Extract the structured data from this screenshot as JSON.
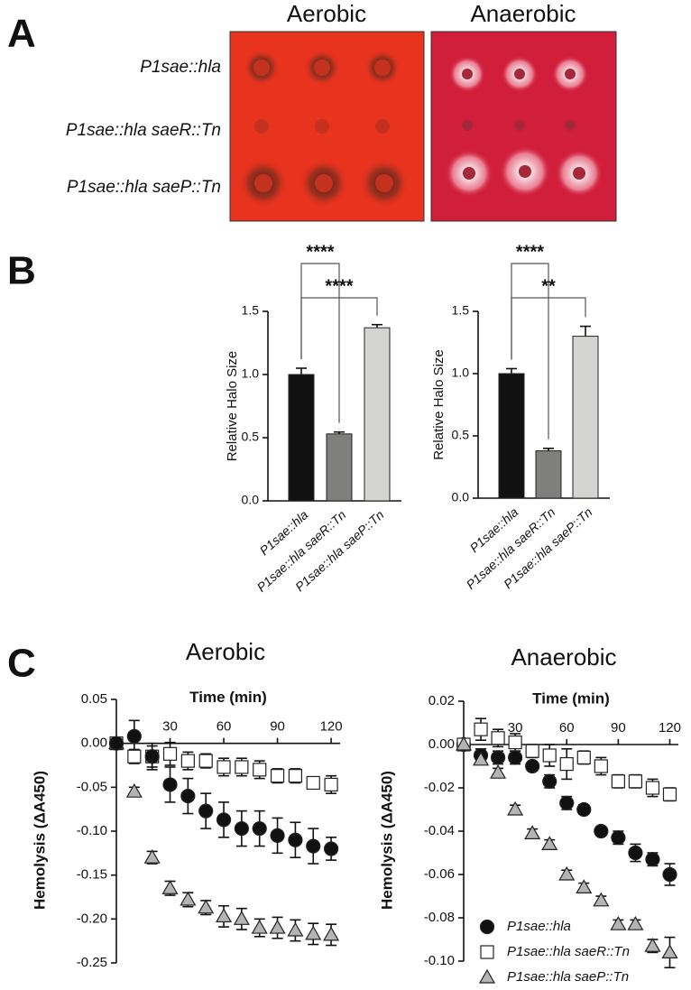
{
  "panel_labels": [
    "A",
    "B",
    "C"
  ],
  "plates": {
    "titles": [
      "Aerobic",
      "Anaerobic"
    ],
    "rows": [
      "P1sae::hla",
      "P1sae::hla saeR::Tn",
      "P1sae::hla saeP::Tn"
    ]
  },
  "chart_data": [
    {
      "type": "bar",
      "ylabel": "Relative Halo Size",
      "categories": [
        "P1sae::hla",
        "P1sae::hla saeR::Tn",
        "P1sae::hla saeP::Tn"
      ],
      "values": [
        1.0,
        0.53,
        1.37
      ],
      "errors": [
        0.05,
        0.015,
        0.025
      ],
      "colors": [
        "#111111",
        "#7f807e",
        "#d4d5d3"
      ],
      "ylim": [
        0,
        1.5
      ],
      "yticks": [
        {
          "value": 0,
          "label": "0.0"
        },
        0.5,
        {
          "value": 1,
          "label": "1.0"
        },
        1.5
      ],
      "comparisons": [
        {
          "groups": [
            "P1sae::hla",
            "P1sae::hla saeR::Tn"
          ],
          "label": "****"
        },
        {
          "groups": [
            "P1sae::hla",
            "P1sae::hla saeP::Tn"
          ],
          "label": "****"
        }
      ]
    },
    {
      "type": "bar",
      "ylabel": "Relative Halo Size",
      "categories": [
        "P1sae::hla",
        "P1sae::hla saeR::Tn",
        "P1sae::hla saeP::Tn"
      ],
      "values": [
        1.0,
        0.38,
        1.3
      ],
      "errors": [
        0.04,
        0.02,
        0.08
      ],
      "colors": [
        "#111111",
        "#7f807e",
        "#d4d5d3"
      ],
      "ylim": [
        0,
        1.5
      ],
      "yticks": [
        {
          "value": 0,
          "label": "0.0"
        },
        0.5,
        {
          "value": 1,
          "label": "1.0"
        },
        1.5
      ],
      "comparisons": [
        {
          "groups": [
            "P1sae::hla",
            "P1sae::hla saeR::Tn"
          ],
          "label": "****"
        },
        {
          "groups": [
            "P1sae::hla",
            "P1sae::hla saeP::Tn"
          ],
          "label": "**"
        }
      ]
    },
    {
      "type": "scatter",
      "title": "Aerobic",
      "xlabel": "Time (min)",
      "ylabel": "Hemolysis (ΔA450)",
      "x": [
        0,
        10,
        20,
        30,
        40,
        50,
        60,
        70,
        80,
        90,
        100,
        110,
        120
      ],
      "xlim": [
        0,
        125
      ],
      "xticks": [
        30,
        60,
        90,
        120
      ],
      "ylim": [
        -0.25,
        0.05
      ],
      "yticks": [
        0.05,
        {
          "value": 0,
          "label": "0.00"
        },
        -0.05,
        {
          "value": -0.1,
          "label": "-0.10"
        },
        -0.15,
        {
          "value": -0.2,
          "label": "-0.20"
        },
        -0.25
      ],
      "series": [
        {
          "marker": "square",
          "color": "#ffffff",
          "values": [
            0,
            -0.015,
            -0.015,
            -0.012,
            -0.02,
            -0.02,
            -0.027,
            -0.027,
            -0.03,
            -0.037,
            -0.037,
            -0.045,
            -0.047
          ],
          "errors": [
            0,
            0.008,
            0.012,
            0.013,
            0.01,
            0.008,
            0.01,
            0.01,
            0.01,
            0.008,
            0.008,
            0.005,
            0.01
          ]
        },
        {
          "marker": "triangle",
          "color": "#b4b4b4",
          "values": [
            0,
            -0.055,
            -0.13,
            -0.165,
            -0.178,
            -0.187,
            -0.197,
            -0.2,
            -0.21,
            -0.21,
            -0.213,
            -0.217,
            -0.218
          ],
          "errors": [
            0,
            0.005,
            0.007,
            0.008,
            0.008,
            0.008,
            0.012,
            0.012,
            0.01,
            0.012,
            0.012,
            0.012,
            0.012
          ]
        },
        {
          "marker": "circle",
          "color": "#111111",
          "values": [
            0,
            0.008,
            -0.015,
            -0.047,
            -0.06,
            -0.077,
            -0.087,
            -0.097,
            -0.097,
            -0.105,
            -0.11,
            -0.117,
            -0.12
          ],
          "errors": [
            0,
            0.018,
            0.015,
            0.02,
            0.02,
            0.02,
            0.02,
            0.02,
            0.02,
            0.02,
            0.02,
            0.02,
            0.013
          ]
        }
      ]
    },
    {
      "type": "scatter",
      "title": "Anaerobic",
      "xlabel": "Time (min)",
      "ylabel": "Hemolysis (ΔA450)",
      "x": [
        0,
        10,
        20,
        30,
        40,
        50,
        60,
        70,
        80,
        90,
        100,
        110,
        120
      ],
      "xlim": [
        0,
        125
      ],
      "xticks": [
        30,
        60,
        90,
        120
      ],
      "ylim": [
        -0.1,
        0.02
      ],
      "yticks": [
        0.02,
        {
          "value": 0,
          "label": "0.00"
        },
        -0.02,
        -0.04,
        -0.06,
        -0.08,
        {
          "value": -0.1,
          "label": "-0.10"
        }
      ],
      "legend": "lower left",
      "series": [
        {
          "name": "P1sae::hla",
          "marker": "circle",
          "color": "#111111",
          "values": [
            0,
            -0.005,
            -0.006,
            -0.006,
            -0.01,
            -0.017,
            -0.027,
            -0.03,
            -0.04,
            -0.043,
            -0.05,
            -0.053,
            -0.06
          ],
          "errors": [
            0,
            0.003,
            0.003,
            0.003,
            0.002,
            0.003,
            0.003,
            0.002,
            0.002,
            0.003,
            0.004,
            0.003,
            0.005
          ]
        },
        {
          "name": "P1sae::hla saeR::Tn",
          "marker": "square",
          "color": "#ffffff",
          "values": [
            0,
            0.007,
            0.003,
            0.001,
            -0.003,
            -0.005,
            -0.009,
            -0.006,
            -0.01,
            -0.017,
            -0.017,
            -0.02,
            -0.023
          ],
          "errors": [
            0,
            0.005,
            0.004,
            0.004,
            0.003,
            0.005,
            0.007,
            0.003,
            0.004,
            0.003,
            0.003,
            0.004,
            0.003
          ]
        },
        {
          "name": "P1sae::hla saeP::Tn",
          "marker": "triangle",
          "color": "#b4b4b4",
          "values": [
            0,
            -0.007,
            -0.013,
            -0.03,
            -0.041,
            -0.046,
            -0.06,
            -0.066,
            -0.072,
            -0.083,
            -0.083,
            -0.093,
            -0.096
          ],
          "errors": [
            0,
            0.002,
            0.002,
            0.002,
            0.002,
            0.002,
            0.002,
            0.002,
            0.002,
            0.002,
            0.002,
            0.003,
            0.007
          ]
        }
      ]
    }
  ]
}
